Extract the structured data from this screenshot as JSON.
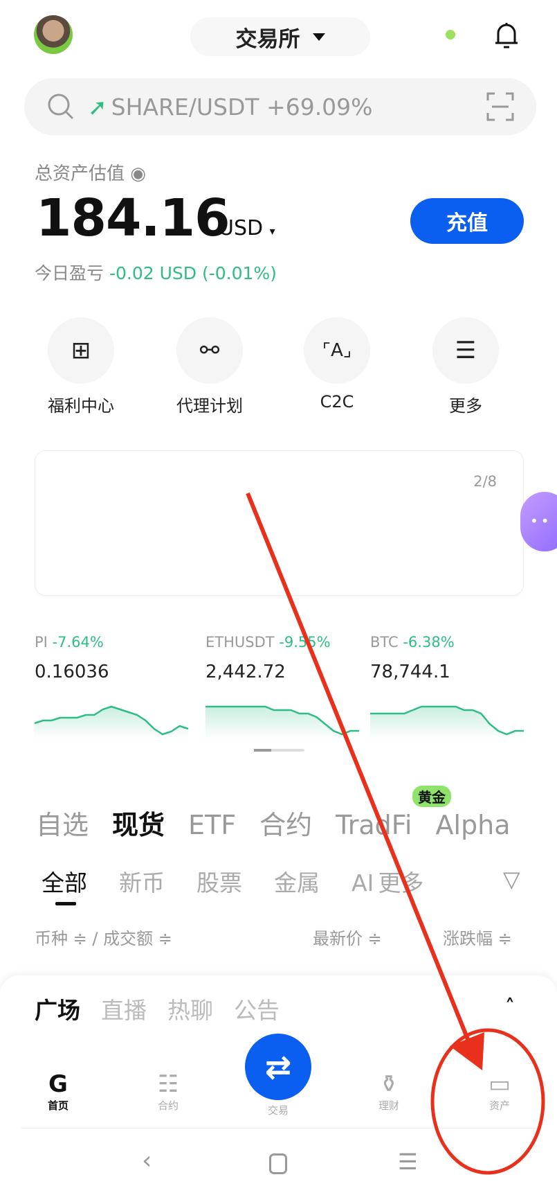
{
  "header": {
    "title": "交易所",
    "search_text": "SHARE/USDT +69.09%"
  },
  "assets": {
    "label": "总资产估值",
    "value": "184.16",
    "currency": "USD",
    "pnl_label": "今日盈亏",
    "pnl_value": "-0.02 USD (-0.01%)",
    "deposit": "充值"
  },
  "quick_actions": [
    {
      "label": "福利中心",
      "icon": "gift-icon"
    },
    {
      "label": "代理计划",
      "icon": "hierarchy-icon"
    },
    {
      "label": "C2C",
      "icon": "c2c-icon"
    },
    {
      "label": "更多",
      "icon": "menu-icon"
    }
  ],
  "banner": {
    "page": "2/8"
  },
  "tickers": [
    {
      "name": "PI",
      "change": "-7.64%",
      "price": "0.16036",
      "spark": [
        5,
        6,
        6,
        7,
        7,
        7,
        8,
        8,
        10,
        11,
        10,
        9,
        8,
        6,
        3,
        1,
        2,
        4,
        3
      ]
    },
    {
      "name": "ETHUSDT",
      "change": "-9.55%",
      "price": "2,442.72",
      "spark": [
        9,
        9,
        9,
        9,
        9,
        9,
        9,
        9,
        8,
        8,
        8,
        7,
        7,
        6,
        4,
        2,
        1,
        2,
        2
      ]
    },
    {
      "name": "BTC",
      "change": "-6.38%",
      "price": "78,744.1",
      "spark": [
        7,
        7,
        7,
        7,
        7,
        8,
        9,
        9,
        9,
        9,
        9,
        8,
        8,
        7,
        4,
        2,
        1,
        2,
        2
      ]
    }
  ],
  "market_tabs": [
    "自选",
    "现货",
    "ETF",
    "合约",
    "TradFi",
    "Alpha"
  ],
  "market_badge": "黄金",
  "sub_tabs": [
    "全部",
    "新币",
    "股票",
    "金属",
    "AI",
    "更多"
  ],
  "columns": {
    "pair": "币种 ≑ / 成交额 ≑",
    "price": "最新价 ≑",
    "change": "涨跌幅 ≑"
  },
  "feed_tabs": [
    "广场",
    "直播",
    "热聊",
    "公告"
  ],
  "bottom_nav": [
    {
      "label": "首页"
    },
    {
      "label": "合约"
    },
    {
      "label": "交易"
    },
    {
      "label": "理财"
    },
    {
      "label": "资产"
    }
  ],
  "colors": {
    "accent": "#0b5ff0",
    "down": "#2ebd85",
    "annotation": "#e8301c"
  }
}
